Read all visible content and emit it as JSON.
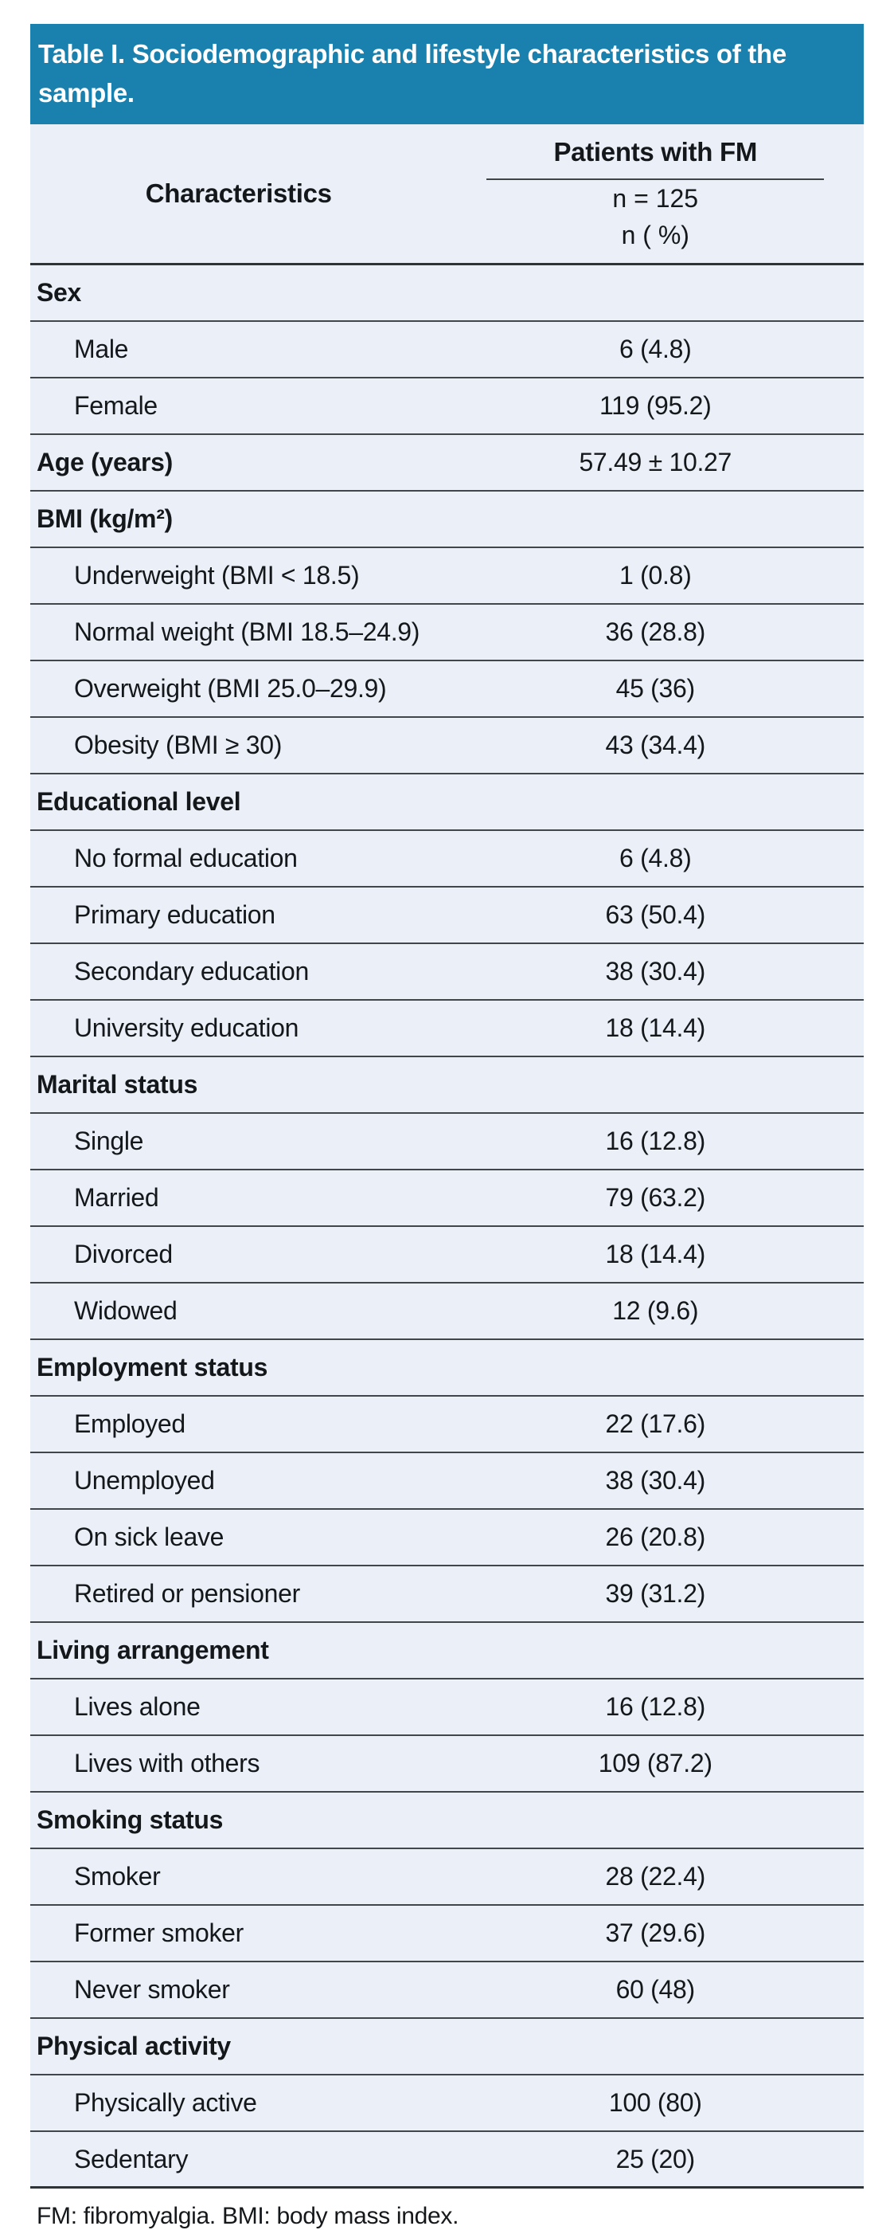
{
  "colors": {
    "title_bg": "#1a80ad",
    "title_text": "#ffffff",
    "row_bg": "#ebeff8",
    "line": "#41464b",
    "heavy_line": "#2e3337",
    "text": "#15181b"
  },
  "table": {
    "title": "Table I. Sociodemographic and lifestyle characteristics of the sample.",
    "header": {
      "characteristics": "Characteristics",
      "group": "Patients with FM",
      "n_line1": "n = 125",
      "n_line2": "n ( %)"
    },
    "rows": [
      {
        "type": "category",
        "label": "Sex",
        "value": ""
      },
      {
        "type": "item",
        "label": "Male",
        "value": "6 (4.8)"
      },
      {
        "type": "item",
        "label": "Female",
        "value": "119 (95.2)"
      },
      {
        "type": "category",
        "label": "Age (years)",
        "value": "57.49 ± 10.27"
      },
      {
        "type": "category",
        "label": "BMI (kg/m²)",
        "value": ""
      },
      {
        "type": "item",
        "label": "Underweight (BMI < 18.5)",
        "value": "1 (0.8)"
      },
      {
        "type": "item",
        "label": "Normal weight (BMI 18.5–24.9)",
        "value": "36 (28.8)"
      },
      {
        "type": "item",
        "label": "Overweight (BMI 25.0–29.9)",
        "value": "45 (36)"
      },
      {
        "type": "item",
        "label": "Obesity (BMI ≥ 30)",
        "value": "43 (34.4)"
      },
      {
        "type": "category",
        "label": "Educational level",
        "value": ""
      },
      {
        "type": "item",
        "label": "No formal education",
        "value": "6 (4.8)"
      },
      {
        "type": "item",
        "label": "Primary education",
        "value": "63 (50.4)"
      },
      {
        "type": "item",
        "label": "Secondary education",
        "value": "38 (30.4)"
      },
      {
        "type": "item",
        "label": "University education",
        "value": "18 (14.4)"
      },
      {
        "type": "category",
        "label": "Marital status",
        "value": ""
      },
      {
        "type": "item",
        "label": "Single",
        "value": "16 (12.8)"
      },
      {
        "type": "item",
        "label": "Married",
        "value": "79 (63.2)"
      },
      {
        "type": "item",
        "label": "Divorced",
        "value": "18 (14.4)"
      },
      {
        "type": "item",
        "label": "Widowed",
        "value": "12 (9.6)"
      },
      {
        "type": "category",
        "label": "Employment status",
        "value": ""
      },
      {
        "type": "item",
        "label": "Employed",
        "value": "22 (17.6)"
      },
      {
        "type": "item",
        "label": "Unemployed",
        "value": "38 (30.4)"
      },
      {
        "type": "item",
        "label": "On sick leave",
        "value": "26 (20.8)"
      },
      {
        "type": "item",
        "label": "Retired or pensioner",
        "value": "39 (31.2)"
      },
      {
        "type": "category",
        "label": "Living arrangement",
        "value": ""
      },
      {
        "type": "item",
        "label": "Lives alone",
        "value": "16 (12.8)"
      },
      {
        "type": "item",
        "label": "Lives with others",
        "value": "109 (87.2)"
      },
      {
        "type": "category",
        "label": "Smoking status",
        "value": ""
      },
      {
        "type": "item",
        "label": "Smoker",
        "value": "28 (22.4)"
      },
      {
        "type": "item",
        "label": "Former smoker",
        "value": "37 (29.6)"
      },
      {
        "type": "item",
        "label": "Never smoker",
        "value": "60 (48)"
      },
      {
        "type": "category",
        "label": "Physical activity",
        "value": ""
      },
      {
        "type": "item",
        "label": "Physically active",
        "value": "100 (80)"
      },
      {
        "type": "item",
        "label": "Sedentary",
        "value": "25 (20)"
      }
    ],
    "footnote": "FM: fibromyalgia. BMI: body mass index."
  }
}
